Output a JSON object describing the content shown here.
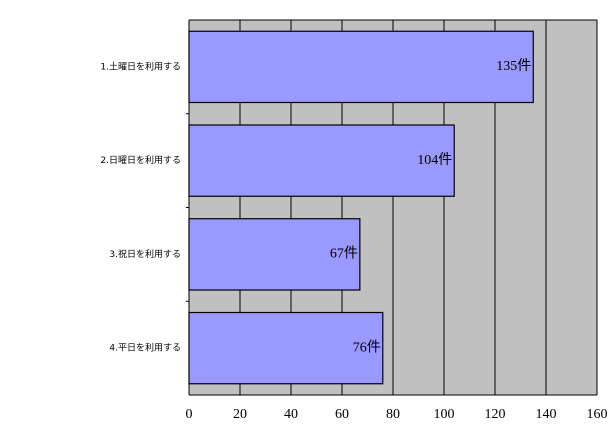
{
  "chart_data": {
    "type": "bar",
    "orientation": "horizontal",
    "categories": [
      "1.土曜日を利用する",
      "2.日曜日を利用する",
      "3.祝日を利用する",
      "4.平日を利用する"
    ],
    "values": [
      135,
      104,
      67,
      76
    ],
    "value_labels": [
      "135件",
      "104件",
      "67件",
      "76件"
    ],
    "color": "#9999ff",
    "background": "#c0c0c0",
    "xlim": [
      0,
      160
    ],
    "xticks": [
      0,
      20,
      40,
      60,
      80,
      100,
      120,
      140,
      160
    ],
    "grid": true
  }
}
